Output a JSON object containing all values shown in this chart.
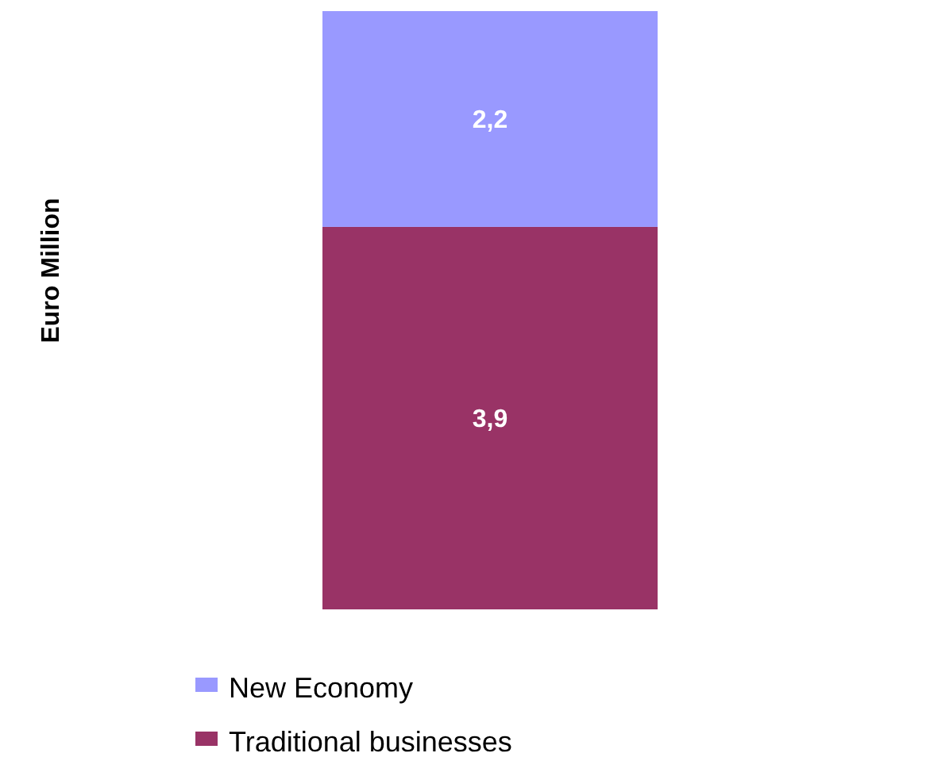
{
  "chart_data": {
    "type": "bar",
    "stacked": true,
    "annotations": [
      "Euro Million"
    ],
    "categories": [
      null
    ],
    "legend": "bottom",
    "series": [
      {
        "name": "Traditional businesses",
        "color": "#993366",
        "values": [
          3.9
        ],
        "value_labels": [
          "3,9"
        ]
      },
      {
        "name": "New Economy",
        "color": "#9999ff",
        "values": [
          2.2
        ],
        "value_labels": [
          "2,2"
        ]
      }
    ]
  }
}
